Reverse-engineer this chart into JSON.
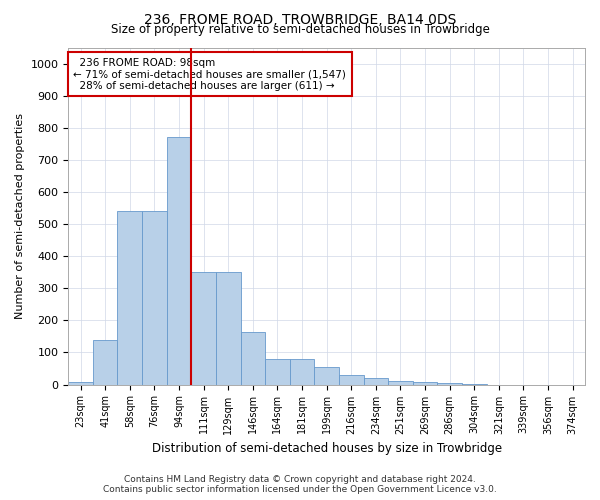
{
  "title": "236, FROME ROAD, TROWBRIDGE, BA14 0DS",
  "subtitle": "Size of property relative to semi-detached houses in Trowbridge",
  "xlabel": "Distribution of semi-detached houses by size in Trowbridge",
  "ylabel": "Number of semi-detached properties",
  "footer_line1": "Contains HM Land Registry data © Crown copyright and database right 2024.",
  "footer_line2": "Contains public sector information licensed under the Open Government Licence v3.0.",
  "bar_labels": [
    "23sqm",
    "41sqm",
    "58sqm",
    "76sqm",
    "94sqm",
    "111sqm",
    "129sqm",
    "146sqm",
    "164sqm",
    "181sqm",
    "199sqm",
    "216sqm",
    "234sqm",
    "251sqm",
    "269sqm",
    "286sqm",
    "304sqm",
    "321sqm",
    "339sqm",
    "356sqm",
    "374sqm"
  ],
  "bar_values": [
    8,
    140,
    540,
    540,
    770,
    350,
    350,
    165,
    80,
    80,
    55,
    30,
    22,
    10,
    8,
    5,
    2,
    0,
    0,
    0,
    0
  ],
  "bar_color": "#b8d0e8",
  "bar_edge_color": "#6699cc",
  "ylim": [
    0,
    1050
  ],
  "yticks": [
    0,
    100,
    200,
    300,
    400,
    500,
    600,
    700,
    800,
    900,
    1000
  ],
  "property_label": "236 FROME ROAD: 98sqm",
  "pct_smaller": 71,
  "count_smaller": 1547,
  "pct_larger": 28,
  "count_larger": 611,
  "vline_color": "#cc0000",
  "annotation_box_edge": "#cc0000",
  "background_color": "#ffffff",
  "grid_color": "#d0d8e8"
}
